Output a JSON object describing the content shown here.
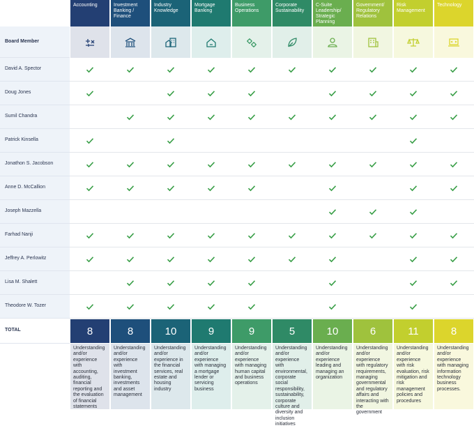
{
  "header": {
    "member_label": "Board Member",
    "total_label": "TOTAL"
  },
  "skills": [
    {
      "name": "Accounting",
      "color": "#233f73",
      "tint": "#dfe2ea",
      "total": 8,
      "description": "Understanding and/or experience with accounting, auditing, financial reporting and the evaluation of financial statements"
    },
    {
      "name": "Investment Banking / Finance",
      "color": "#1e4f7b",
      "tint": "#dde4ec",
      "total": 8,
      "description": "Understanding and/or experience with investment banking, investments and asset management"
    },
    {
      "name": "Industry Knowledge",
      "color": "#1b6377",
      "tint": "#dde8ec",
      "total": 10,
      "description": "Understanding and/or experience in the financial services, real estate and housing industry"
    },
    {
      "name": "Mortgage Banking",
      "color": "#1f7a70",
      "tint": "#deeeec",
      "total": 9,
      "description": "Understanding and/or experience with managing a mortgage lender or servicing business"
    },
    {
      "name": "Business Operations",
      "color": "#3e9b68",
      "tint": "#e4f1ea",
      "total": 9,
      "description": "Understanding and/or experience with managing human capital and business operations"
    },
    {
      "name": "Corporate Sustainability",
      "color": "#2f8a66",
      "tint": "#e1efe9",
      "total": 5,
      "description": "Understanding and/or experience with environmental, corporate social responsibility, sustainability, corporate culture and diversity and inclusion initiatives"
    },
    {
      "name": "C-Suite Leadership/ Strategic Planning",
      "color": "#6aae4f",
      "tint": "#eaf4e5",
      "total": 10,
      "description": "Understanding and/or experience leading and managing an organization"
    },
    {
      "name": "Government/ Regulatory Relations",
      "color": "#9fc23d",
      "tint": "#f1f6e1",
      "total": 6,
      "description": "Understanding and/or experience with regulatory requirements, managing governmental and regulatory affairs and interacting with the government"
    },
    {
      "name": "Risk Management",
      "color": "#c2cf2e",
      "tint": "#f6f8de",
      "total": 11,
      "description": "Understanding and/or experience with risk evaluation, risk mitigation and risk management policies and procedures"
    },
    {
      "name": "Technology",
      "color": "#dcd52c",
      "tint": "#f9f8dd",
      "total": 8,
      "description": "Understanding and/or experience with managing information technology business processes."
    }
  ],
  "members": [
    {
      "name": "David A. Spector",
      "checks": [
        true,
        true,
        true,
        true,
        true,
        true,
        true,
        true,
        true,
        true
      ]
    },
    {
      "name": "Doug Jones",
      "checks": [
        true,
        false,
        true,
        true,
        true,
        false,
        true,
        true,
        true,
        true
      ]
    },
    {
      "name": "Sumil Chandra",
      "checks": [
        false,
        true,
        true,
        true,
        true,
        true,
        true,
        true,
        true,
        true
      ]
    },
    {
      "name": "Patrick Kinsella",
      "checks": [
        true,
        false,
        true,
        false,
        false,
        false,
        false,
        false,
        true,
        false
      ]
    },
    {
      "name": "Jonathon S. Jacobson",
      "checks": [
        true,
        true,
        true,
        true,
        true,
        true,
        true,
        true,
        true,
        true
      ]
    },
    {
      "name": "Anne D. McCallion",
      "checks": [
        true,
        true,
        true,
        true,
        true,
        false,
        true,
        false,
        true,
        true
      ]
    },
    {
      "name": "Joseph Mazzella",
      "checks": [
        false,
        false,
        false,
        false,
        false,
        false,
        true,
        true,
        true,
        false
      ]
    },
    {
      "name": "Farhad Nanji",
      "checks": [
        true,
        true,
        true,
        true,
        true,
        true,
        true,
        true,
        true,
        true
      ]
    },
    {
      "name": "Jeffrey A. Perlowitz",
      "checks": [
        true,
        true,
        true,
        true,
        true,
        true,
        true,
        false,
        true,
        true
      ]
    },
    {
      "name": "Lisa M. Shalett",
      "checks": [
        false,
        true,
        true,
        true,
        true,
        false,
        true,
        false,
        true,
        true
      ]
    },
    {
      "name": "Theodore W. Tozer",
      "checks": [
        true,
        true,
        true,
        true,
        true,
        false,
        true,
        false,
        true,
        false
      ]
    }
  ]
}
